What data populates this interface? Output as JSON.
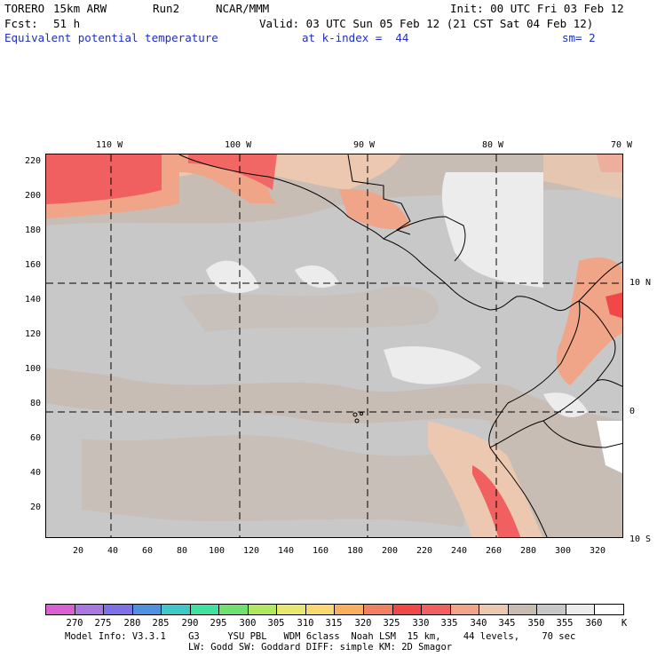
{
  "header": {
    "model": "TORERO",
    "resolution": "15km ARW",
    "run": "Run2",
    "org": "NCAR/MMM",
    "init": "Init: 00 UTC Fri 03 Feb 12",
    "fcst_label": "Fcst:",
    "fcst_value": "51 h",
    "valid": "Valid: 03 UTC Sun 05 Feb 12 (21 CST Sat 04 Feb 12)",
    "field": "Equivalent potential temperature",
    "level": "at k-index =  44",
    "smooth": "sm= 2"
  },
  "map": {
    "lon_labels": [
      "110 W",
      "100 W",
      "90 W",
      "80 W",
      "70 W"
    ],
    "lat_labels": [
      "10 N",
      "0",
      "10 S"
    ],
    "x_ticks": [
      "20",
      "40",
      "60",
      "80",
      "100",
      "120",
      "140",
      "160",
      "180",
      "200",
      "220",
      "240",
      "260",
      "280",
      "300",
      "320"
    ],
    "y_ticks": [
      "220",
      "200",
      "180",
      "160",
      "140",
      "120",
      "100",
      "80",
      "60",
      "40",
      "20"
    ]
  },
  "colorbar": {
    "labels": [
      "270",
      "275",
      "280",
      "285",
      "290",
      "295",
      "300",
      "305",
      "310",
      "315",
      "320",
      "325",
      "330",
      "335",
      "340",
      "345",
      "350",
      "355",
      "360"
    ],
    "unit": "K",
    "colors": [
      "#d860d0",
      "#a878e0",
      "#8070e8",
      "#5090e0",
      "#40c8c8",
      "#40e0a0",
      "#70e070",
      "#b0e860",
      "#e8e870",
      "#f8d870",
      "#f8b060",
      "#f08060",
      "#f04848",
      "#f06060",
      "#f0a488",
      "#ecc8b0",
      "#c8bcb0",
      "#c8c8c8",
      "#ececec",
      "#ffffff"
    ]
  },
  "footer": {
    "line1": "Model Info: V3.3.1    G3     YSU PBL   WDM 6class  Noah LSM  15 km,    44 levels,    70 sec",
    "line2": "LW: Godd SW: Goddard DIFF: simple KM: 2D Smagor"
  }
}
